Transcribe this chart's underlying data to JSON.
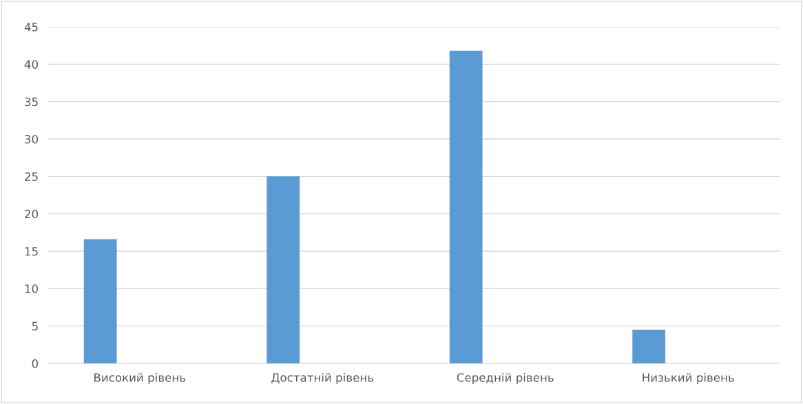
{
  "chart_data": {
    "type": "bar",
    "categories": [
      "Високий рівень",
      "Достатній рівень",
      "Середній рівень",
      "Низький рівень"
    ],
    "values": [
      16.6,
      25,
      41.8,
      4.5
    ],
    "color": "#5b9bd5",
    "ylim": [
      0,
      45
    ],
    "yticks": [
      0,
      5,
      10,
      15,
      20,
      25,
      30,
      35,
      40,
      45
    ],
    "grid": "y",
    "legend": false
  }
}
